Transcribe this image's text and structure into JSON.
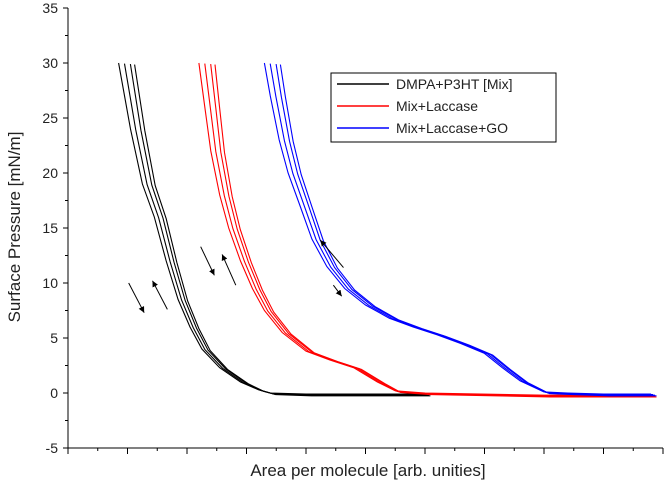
{
  "chart_data": {
    "type": "line",
    "title": "",
    "xlabel": "Area per molecule [arb. unities]",
    "ylabel": "Surface Pressure [mN/m]",
    "xlim": [
      0,
      100
    ],
    "ylim": [
      -5,
      35
    ],
    "y_ticks": [
      "-5",
      "0",
      "5",
      "10",
      "15",
      "20",
      "25",
      "30",
      "35"
    ],
    "x_tick_labels_shown": false,
    "grid": false,
    "legend_position": "top-right",
    "series": [
      {
        "name": "DMPA+P3HT [Mix]",
        "color": "#000000",
        "points": [
          [
            8.5,
            30
          ],
          [
            10.5,
            24
          ],
          [
            12.5,
            19
          ],
          [
            14.5,
            16
          ],
          [
            16.5,
            12
          ],
          [
            18.5,
            8.5
          ],
          [
            20.5,
            6
          ],
          [
            22.5,
            4
          ],
          [
            25.5,
            2.3
          ],
          [
            29,
            1
          ],
          [
            32,
            0.3
          ],
          [
            34,
            0
          ],
          [
            40,
            -0.1
          ],
          [
            60,
            -0.1
          ]
        ]
      },
      {
        "name": "Mix+Laccase",
        "color": "#ff0000",
        "points": [
          [
            22,
            30
          ],
          [
            23,
            26
          ],
          [
            24,
            22
          ],
          [
            25.5,
            18
          ],
          [
            27,
            15
          ],
          [
            29,
            12
          ],
          [
            31,
            9.5
          ],
          [
            33,
            7.5
          ],
          [
            36,
            5.5
          ],
          [
            40,
            3.8
          ],
          [
            44,
            3
          ],
          [
            48,
            2.3
          ],
          [
            52,
            1
          ],
          [
            55,
            0.2
          ],
          [
            60,
            0
          ],
          [
            80,
            -0.2
          ],
          [
            98,
            -0.2
          ]
        ]
      },
      {
        "name": "Mix+Laccase+GO",
        "color": "#0000ff",
        "points": [
          [
            33,
            30
          ],
          [
            34,
            27
          ],
          [
            35.5,
            23
          ],
          [
            37,
            20
          ],
          [
            39,
            17
          ],
          [
            41,
            14
          ],
          [
            43.5,
            11.5
          ],
          [
            46.5,
            9.5
          ],
          [
            50,
            8
          ],
          [
            54,
            6.8
          ],
          [
            58,
            6
          ],
          [
            62,
            5.3
          ],
          [
            66,
            4.5
          ],
          [
            70,
            3.6
          ],
          [
            73,
            2.3
          ],
          [
            76,
            1.1
          ],
          [
            80,
            0.1
          ],
          [
            84,
            0
          ],
          [
            90,
            -0.1
          ],
          [
            98,
            -0.1
          ]
        ]
      }
    ],
    "arrows": [
      {
        "color": "#000000",
        "from": [
          10.2,
          10
        ],
        "to": [
          12.8,
          7.3
        ]
      },
      {
        "color": "#000000",
        "from": [
          16.7,
          7.6
        ],
        "to": [
          14.2,
          10.2
        ]
      },
      {
        "color": "#000000",
        "from": [
          22.3,
          13.3
        ],
        "to": [
          24.6,
          10.7
        ]
      },
      {
        "color": "#000000",
        "from": [
          28.2,
          9.8
        ],
        "to": [
          25.9,
          12.6
        ]
      },
      {
        "color": "#000000",
        "from": [
          46.3,
          11.4
        ],
        "to": [
          42.4,
          13.9
        ]
      },
      {
        "color": "#000000",
        "from": [
          44.6,
          9.8
        ],
        "to": [
          46,
          8.8
        ]
      }
    ]
  }
}
